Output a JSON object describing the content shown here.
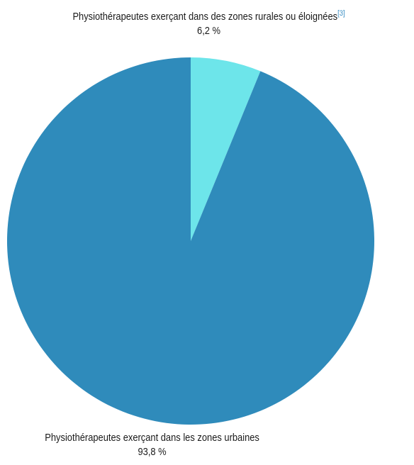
{
  "chart_data": {
    "type": "pie",
    "slices": [
      {
        "label": "Physiothérapeutes exerçant dans des zones rurales ou éloignées",
        "footnote": "[3]",
        "value": 6.2,
        "value_label": "6,2 %",
        "color": "#6de5ea"
      },
      {
        "label": "Physiothérapeutes exerçant dans les zones urbaines",
        "value": 93.8,
        "value_label": "93,8 %",
        "color": "#2f8bbb"
      }
    ],
    "start_angle": "top",
    "direction": "clockwise"
  }
}
